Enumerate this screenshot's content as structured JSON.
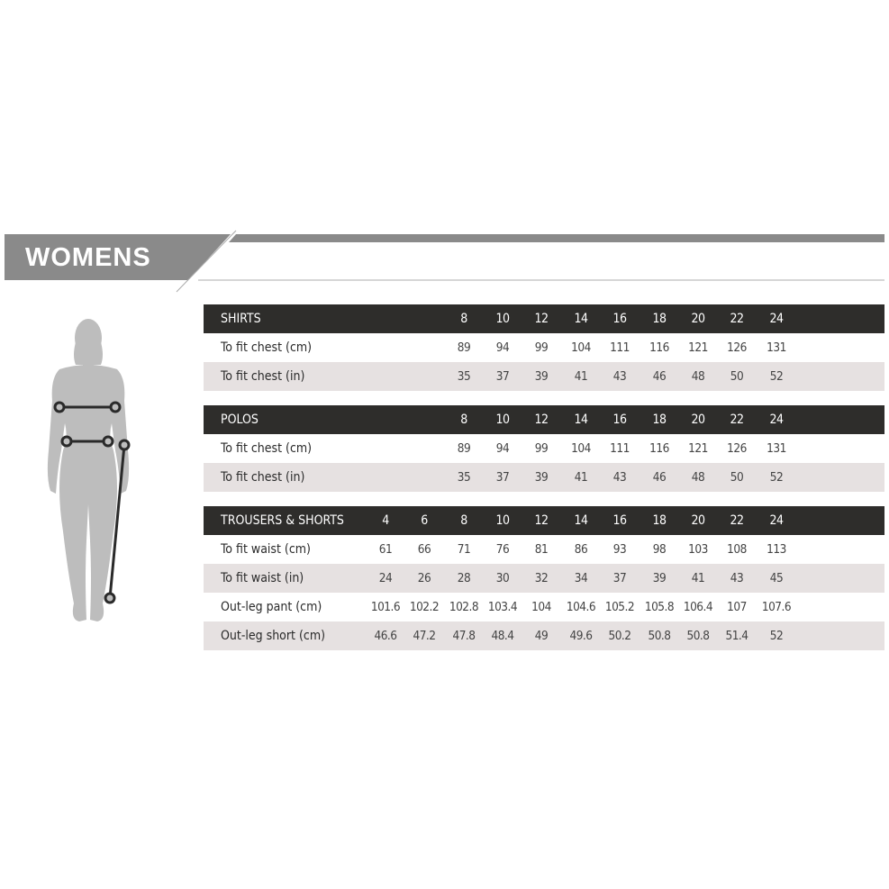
{
  "title": "WOMENS",
  "colors": {
    "banner": "#8a8a8a",
    "header_row": "#2e2d2b",
    "shaded_row": "#e6e1e1",
    "figure": "#bdbdbd"
  },
  "figure_icon": "female-body-measurement-icon",
  "tables": [
    {
      "header": "SHIRTS",
      "sizes": [
        "8",
        "10",
        "12",
        "14",
        "16",
        "18",
        "20",
        "22",
        "24"
      ],
      "rows": [
        {
          "label": "To fit chest (cm)",
          "values": [
            "89",
            "94",
            "99",
            "104",
            "111",
            "116",
            "121",
            "126",
            "131"
          ]
        },
        {
          "label": "To fit chest (in)",
          "values": [
            "35",
            "37",
            "39",
            "41",
            "43",
            "46",
            "48",
            "50",
            "52"
          ]
        }
      ]
    },
    {
      "header": "POLOS",
      "sizes": [
        "8",
        "10",
        "12",
        "14",
        "16",
        "18",
        "20",
        "22",
        "24"
      ],
      "rows": [
        {
          "label": "To fit chest (cm)",
          "values": [
            "89",
            "94",
            "99",
            "104",
            "111",
            "116",
            "121",
            "126",
            "131"
          ]
        },
        {
          "label": "To fit chest (in)",
          "values": [
            "35",
            "37",
            "39",
            "41",
            "43",
            "46",
            "48",
            "50",
            "52"
          ]
        }
      ]
    },
    {
      "header": "TROUSERS & SHORTS",
      "sizes": [
        "4",
        "6",
        "8",
        "10",
        "12",
        "14",
        "16",
        "18",
        "20",
        "22",
        "24"
      ],
      "rows": [
        {
          "label": "To fit waist (cm)",
          "values": [
            "61",
            "66",
            "71",
            "76",
            "81",
            "86",
            "93",
            "98",
            "103",
            "108",
            "113"
          ]
        },
        {
          "label": "To fit waist (in)",
          "values": [
            "24",
            "26",
            "28",
            "30",
            "32",
            "34",
            "37",
            "39",
            "41",
            "43",
            "45"
          ]
        },
        {
          "label": "Out-leg pant (cm)",
          "values": [
            "101.6",
            "102.2",
            "102.8",
            "103.4",
            "104",
            "104.6",
            "105.2",
            "105.8",
            "106.4",
            "107",
            "107.6"
          ]
        },
        {
          "label": "Out-leg short (cm)",
          "values": [
            "46.6",
            "47.2",
            "47.8",
            "48.4",
            "49",
            "49.6",
            "50.2",
            "50.8",
            "50.8",
            "51.4",
            "52"
          ]
        }
      ]
    }
  ]
}
